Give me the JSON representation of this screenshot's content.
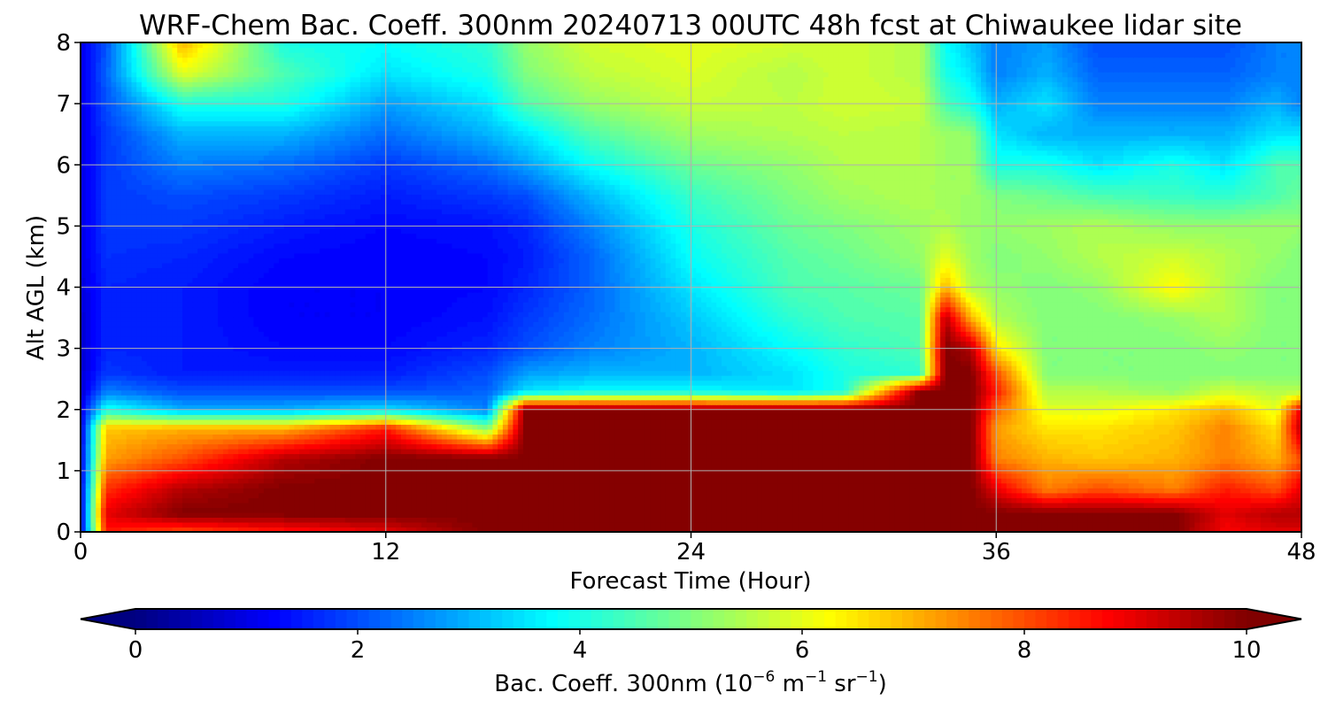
{
  "chart_data": {
    "type": "heatmap",
    "title": "WRF-Chem Bac. Coeff. 300nm  20240713 00UTC 48h fcst at Chiwaukee lidar site",
    "xlabel": "Forecast Time (Hour)",
    "ylabel": "Alt AGL (km)",
    "xlim": [
      0,
      48
    ],
    "ylim": [
      0,
      8
    ],
    "x_ticks": [
      "0",
      "12",
      "24",
      "36",
      "48"
    ],
    "y_ticks": [
      "0",
      "1",
      "2",
      "3",
      "4",
      "5",
      "6",
      "7",
      "8"
    ],
    "grid": true,
    "colormap": "jet",
    "colorbar": {
      "orientation": "horizontal",
      "placement": "bottom",
      "range": [
        0,
        10
      ],
      "extend": "both",
      "ticks": [
        "0",
        "2",
        "4",
        "6",
        "8",
        "10"
      ],
      "label_prefix": "Bac. Coeff. 300nm  (10",
      "label_exp1": "−6",
      "label_mid": " m",
      "label_exp2": "−1",
      "label_mid2": " sr",
      "label_exp3": "−1",
      "label_suffix": ")"
    },
    "x": [
      0,
      1,
      4,
      8,
      12,
      16,
      17.5,
      20,
      24,
      28,
      30,
      33,
      34,
      35,
      36,
      38,
      40,
      43,
      45,
      47,
      48
    ],
    "y": [
      0,
      0.3,
      0.7,
      1.2,
      1.7,
      2.0,
      2.3,
      2.6,
      3.0,
      3.5,
      4.0,
      4.5,
      5.0,
      5.5,
      6.0,
      6.5,
      7.0,
      7.5,
      8.0
    ],
    "z": [
      [
        1.0,
        8.5,
        8.0,
        8.5,
        9.0,
        10.0,
        10.0,
        10.0,
        10.0,
        10.0,
        10.0,
        10.0,
        10.0,
        10.0,
        10.0,
        10.0,
        10.0,
        10.0,
        8.8,
        9.0,
        9.0
      ],
      [
        1.0,
        9.0,
        10.0,
        10.0,
        10.0,
        10.0,
        10.0,
        10.0,
        10.0,
        10.0,
        10.0,
        10.0,
        10.0,
        10.0,
        10.0,
        10.0,
        10.0,
        10.0,
        9.0,
        9.5,
        9.5
      ],
      [
        1.0,
        8.3,
        9.5,
        10.0,
        10.0,
        10.0,
        10.0,
        10.0,
        10.0,
        10.0,
        10.0,
        10.0,
        10.0,
        10.0,
        9.0,
        7.5,
        8.0,
        7.5,
        8.5,
        8.0,
        9.0
      ],
      [
        1.0,
        7.2,
        8.0,
        9.5,
        10.0,
        10.0,
        10.0,
        10.0,
        10.0,
        10.0,
        10.0,
        10.0,
        10.0,
        10.0,
        7.5,
        7.0,
        6.8,
        7.0,
        7.5,
        7.0,
        8.0
      ],
      [
        1.0,
        6.8,
        7.0,
        7.0,
        8.5,
        5.0,
        10.0,
        10.0,
        10.0,
        10.0,
        10.0,
        10.0,
        10.0,
        10.0,
        7.2,
        6.5,
        6.5,
        6.8,
        7.5,
        6.5,
        9.5
      ],
      [
        1.0,
        4.0,
        3.0,
        3.0,
        3.5,
        2.5,
        10.0,
        10.0,
        10.0,
        10.0,
        10.0,
        10.0,
        10.0,
        10.0,
        7.8,
        6.0,
        6.0,
        6.5,
        7.0,
        6.0,
        9.0
      ],
      [
        0.8,
        2.5,
        2.0,
        2.0,
        2.0,
        2.2,
        3.5,
        3.8,
        3.8,
        3.5,
        4.0,
        10.0,
        10.0,
        10.0,
        8.5,
        5.5,
        5.5,
        5.2,
        5.8,
        5.5,
        5.5
      ],
      [
        0.8,
        1.8,
        1.5,
        1.5,
        1.5,
        2.0,
        2.8,
        3.0,
        3.0,
        3.5,
        4.0,
        4.2,
        10.0,
        10.0,
        8.0,
        5.0,
        5.0,
        5.0,
        5.0,
        5.0,
        5.0
      ],
      [
        0.8,
        1.6,
        1.5,
        1.3,
        1.3,
        1.6,
        2.0,
        2.5,
        3.0,
        3.8,
        4.2,
        4.5,
        10.0,
        9.5,
        6.5,
        5.0,
        5.0,
        5.0,
        5.2,
        5.0,
        5.0
      ],
      [
        0.8,
        1.6,
        1.5,
        1.2,
        1.2,
        1.4,
        1.8,
        2.3,
        3.2,
        4.2,
        4.5,
        4.6,
        9.5,
        7.0,
        5.5,
        5.0,
        5.0,
        5.2,
        5.5,
        5.0,
        5.0
      ],
      [
        0.9,
        1.6,
        1.5,
        1.2,
        1.2,
        1.3,
        1.6,
        2.2,
        3.5,
        4.5,
        4.6,
        4.8,
        7.0,
        5.5,
        5.2,
        5.0,
        5.2,
        6.3,
        5.5,
        5.0,
        5.0
      ],
      [
        1.0,
        1.7,
        1.6,
        1.3,
        1.2,
        1.3,
        1.5,
        2.2,
        3.8,
        4.6,
        4.8,
        5.2,
        6.0,
        5.3,
        5.0,
        5.2,
        5.5,
        5.8,
        5.5,
        5.2,
        5.0
      ],
      [
        1.0,
        1.8,
        1.8,
        1.5,
        1.3,
        1.4,
        1.6,
        2.5,
        4.0,
        4.8,
        5.0,
        5.3,
        5.5,
        5.2,
        5.2,
        5.3,
        5.5,
        5.2,
        5.2,
        5.3,
        5.2
      ],
      [
        1.0,
        1.8,
        2.0,
        1.8,
        1.5,
        1.8,
        2.0,
        3.0,
        4.3,
        5.0,
        5.3,
        5.5,
        5.3,
        5.3,
        5.0,
        4.8,
        4.5,
        4.3,
        4.2,
        4.5,
        4.8
      ],
      [
        1.0,
        1.8,
        2.5,
        2.3,
        1.8,
        2.3,
        2.8,
        3.8,
        4.8,
        5.2,
        5.5,
        5.5,
        5.3,
        5.3,
        4.0,
        4.0,
        3.5,
        4.0,
        3.5,
        4.5,
        4.5
      ],
      [
        1.0,
        1.8,
        3.0,
        3.0,
        2.3,
        3.0,
        3.5,
        4.5,
        5.3,
        5.5,
        5.6,
        5.5,
        5.3,
        5.2,
        3.5,
        3.0,
        3.0,
        3.0,
        3.0,
        3.5,
        3.5
      ],
      [
        1.0,
        2.0,
        4.0,
        4.0,
        2.8,
        3.5,
        4.5,
        5.2,
        5.7,
        5.6,
        5.8,
        5.7,
        4.5,
        4.0,
        3.0,
        3.5,
        2.5,
        2.5,
        2.5,
        3.0,
        2.5
      ],
      [
        1.0,
        2.2,
        6.0,
        4.5,
        3.5,
        4.0,
        5.0,
        5.6,
        5.9,
        5.5,
        5.8,
        5.5,
        4.0,
        3.5,
        2.5,
        3.0,
        2.2,
        2.2,
        2.2,
        2.5,
        2.5
      ],
      [
        1.0,
        2.0,
        7.0,
        4.0,
        3.8,
        4.2,
        5.2,
        5.8,
        6.0,
        5.8,
        5.8,
        5.5,
        3.8,
        3.2,
        2.5,
        2.8,
        2.0,
        2.0,
        2.0,
        2.5,
        2.5
      ]
    ]
  }
}
